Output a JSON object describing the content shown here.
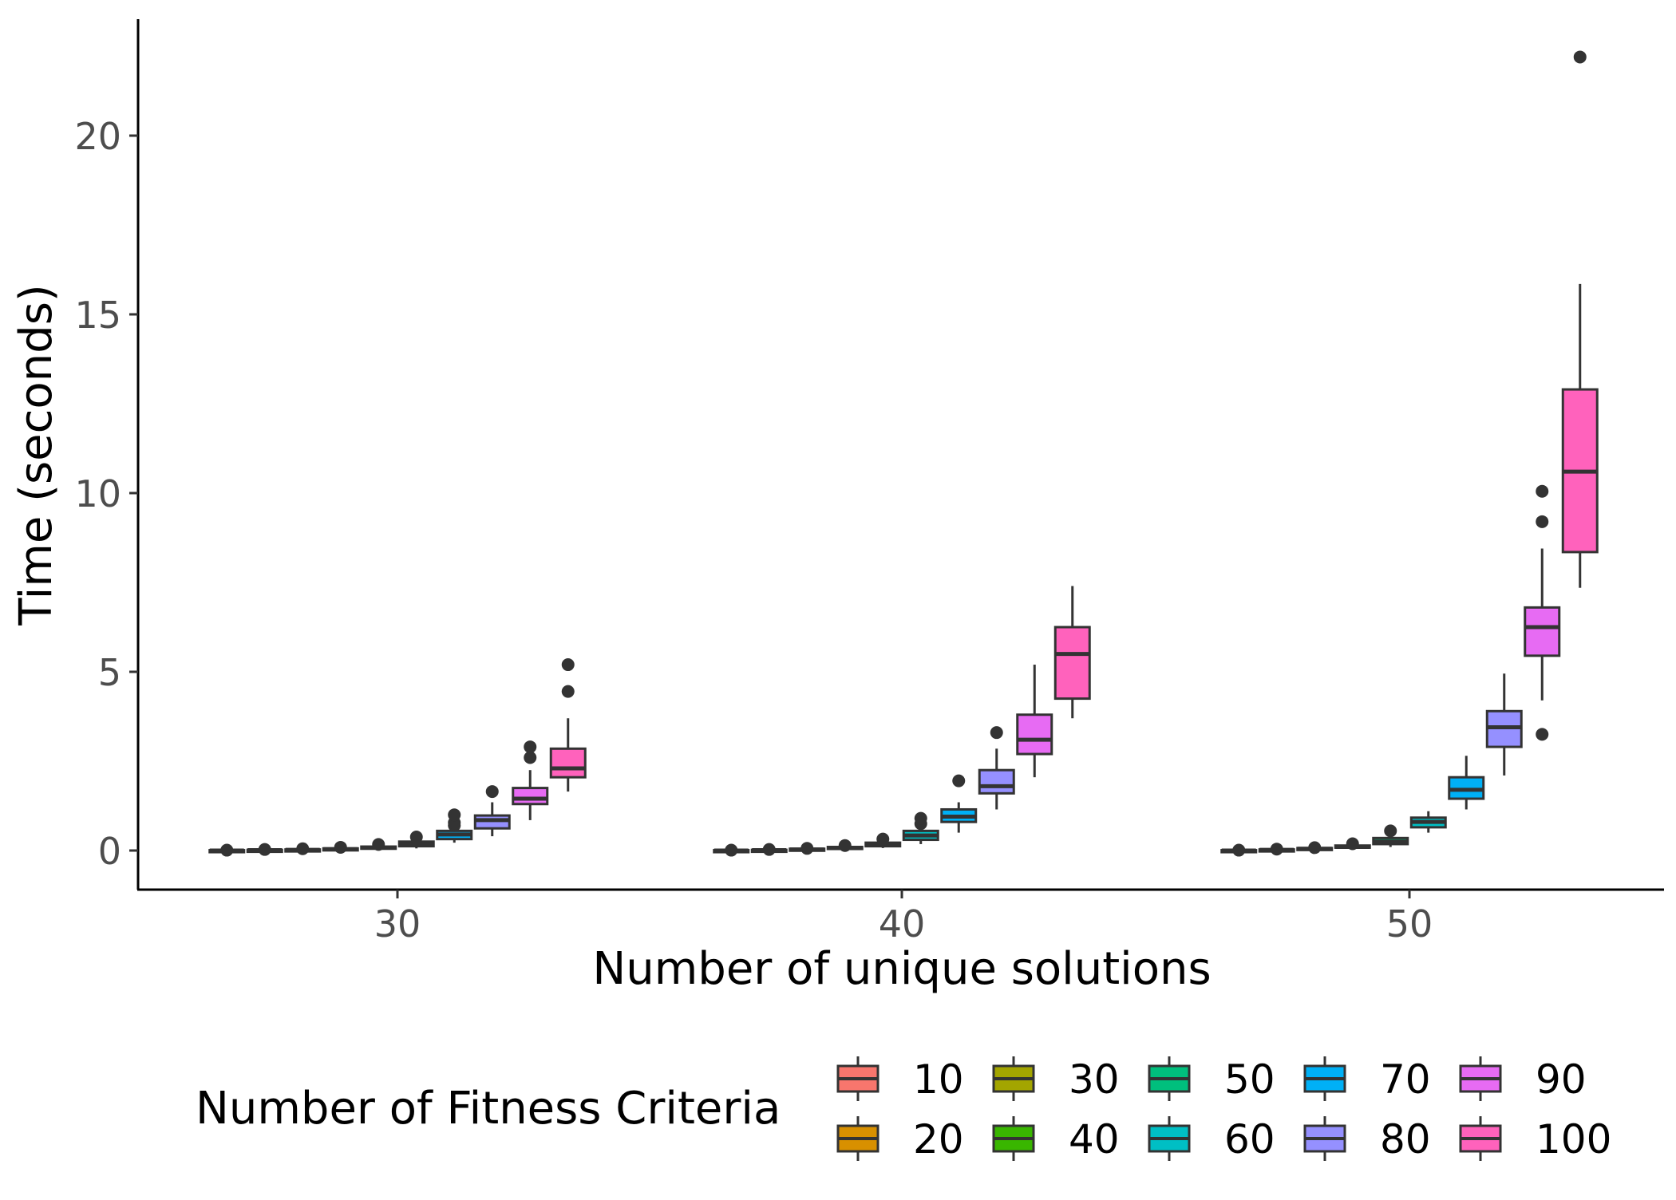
{
  "chart_data": {
    "type": "boxplot",
    "xlabel": "Number of unique solutions",
    "ylabel": "Time (seconds)",
    "ylim": [
      -1,
      23
    ],
    "y_ticks": [
      0,
      5,
      10,
      15,
      20
    ],
    "grid": false,
    "categories": [
      "30",
      "40",
      "50"
    ],
    "legend": {
      "title": "Number of Fitness Criteria",
      "placement": "bottom",
      "entries": [
        "10",
        "20",
        "30",
        "40",
        "50",
        "60",
        "70",
        "80",
        "90",
        "100"
      ]
    },
    "series": [
      {
        "name": "10",
        "color": "#F8766D",
        "boxes": [
          {
            "min": 0.0,
            "q1": 0.0,
            "median": 0.0,
            "q3": 0.01,
            "max": 0.01,
            "outliers": [
              0.01
            ]
          },
          {
            "min": 0.0,
            "q1": 0.0,
            "median": 0.0,
            "q3": 0.01,
            "max": 0.01,
            "outliers": [
              0.01
            ]
          },
          {
            "min": 0.0,
            "q1": 0.0,
            "median": 0.0,
            "q3": 0.01,
            "max": 0.01,
            "outliers": [
              0.01
            ]
          }
        ]
      },
      {
        "name": "20",
        "color": "#D89000",
        "boxes": [
          {
            "min": 0.0,
            "q1": 0.0,
            "median": 0.01,
            "q3": 0.02,
            "max": 0.03,
            "outliers": [
              0.03
            ]
          },
          {
            "min": 0.0,
            "q1": 0.01,
            "median": 0.01,
            "q3": 0.02,
            "max": 0.03,
            "outliers": [
              0.03
            ]
          },
          {
            "min": 0.0,
            "q1": 0.01,
            "median": 0.02,
            "q3": 0.03,
            "max": 0.04,
            "outliers": [
              0.04
            ]
          }
        ]
      },
      {
        "name": "30",
        "color": "#A3A500",
        "boxes": [
          {
            "min": 0.0,
            "q1": 0.01,
            "median": 0.02,
            "q3": 0.03,
            "max": 0.04,
            "outliers": [
              0.05
            ]
          },
          {
            "min": 0.01,
            "q1": 0.02,
            "median": 0.03,
            "q3": 0.05,
            "max": 0.06,
            "outliers": [
              0.06
            ]
          },
          {
            "min": 0.02,
            "q1": 0.04,
            "median": 0.05,
            "q3": 0.07,
            "max": 0.08,
            "outliers": [
              0.08
            ]
          }
        ]
      },
      {
        "name": "40",
        "color": "#39B600",
        "boxes": [
          {
            "min": 0.02,
            "q1": 0.03,
            "median": 0.04,
            "q3": 0.06,
            "max": 0.08,
            "outliers": [
              0.09
            ]
          },
          {
            "min": 0.03,
            "q1": 0.05,
            "median": 0.07,
            "q3": 0.1,
            "max": 0.12,
            "outliers": [
              0.14
            ]
          },
          {
            "min": 0.04,
            "q1": 0.08,
            "median": 0.1,
            "q3": 0.14,
            "max": 0.17,
            "outliers": [
              0.19
            ]
          }
        ]
      },
      {
        "name": "50",
        "color": "#00BF7D",
        "boxes": [
          {
            "min": 0.03,
            "q1": 0.05,
            "median": 0.08,
            "q3": 0.11,
            "max": 0.14,
            "outliers": [
              0.17
            ]
          },
          {
            "min": 0.07,
            "q1": 0.12,
            "median": 0.17,
            "q3": 0.22,
            "max": 0.27,
            "outliers": [
              0.32
            ]
          },
          {
            "min": 0.1,
            "q1": 0.18,
            "median": 0.25,
            "q3": 0.35,
            "max": 0.45,
            "outliers": [
              0.55
            ]
          }
        ]
      },
      {
        "name": "60",
        "color": "#00BFC4",
        "boxes": [
          {
            "min": 0.06,
            "q1": 0.12,
            "median": 0.18,
            "q3": 0.25,
            "max": 0.32,
            "outliers": [
              0.38
            ]
          },
          {
            "min": 0.18,
            "q1": 0.3,
            "median": 0.42,
            "q3": 0.55,
            "max": 0.68,
            "outliers": [
              0.75,
              0.9
            ]
          },
          {
            "min": 0.5,
            "q1": 0.65,
            "median": 0.8,
            "q3": 0.92,
            "max": 1.1,
            "outliers": []
          }
        ]
      },
      {
        "name": "70",
        "color": "#00B0F6",
        "boxes": [
          {
            "min": 0.22,
            "q1": 0.32,
            "median": 0.45,
            "q3": 0.55,
            "max": 0.68,
            "outliers": [
              0.7,
              0.78,
              1.0
            ]
          },
          {
            "min": 0.5,
            "q1": 0.8,
            "median": 0.95,
            "q3": 1.15,
            "max": 1.35,
            "outliers": [
              1.95
            ]
          },
          {
            "min": 1.15,
            "q1": 1.45,
            "median": 1.7,
            "q3": 2.05,
            "max": 2.65,
            "outliers": []
          }
        ]
      },
      {
        "name": "80",
        "color": "#9590FF",
        "boxes": [
          {
            "min": 0.4,
            "q1": 0.62,
            "median": 0.85,
            "q3": 0.98,
            "max": 1.35,
            "outliers": [
              1.65
            ]
          },
          {
            "min": 1.15,
            "q1": 1.6,
            "median": 1.8,
            "q3": 2.25,
            "max": 2.85,
            "outliers": [
              3.3
            ]
          },
          {
            "min": 2.1,
            "q1": 2.9,
            "median": 3.45,
            "q3": 3.9,
            "max": 4.95,
            "outliers": []
          }
        ]
      },
      {
        "name": "90",
        "color": "#E76BF3",
        "boxes": [
          {
            "min": 0.85,
            "q1": 1.3,
            "median": 1.45,
            "q3": 1.75,
            "max": 2.25,
            "outliers": [
              2.6,
              2.9
            ]
          },
          {
            "min": 2.05,
            "q1": 2.7,
            "median": 3.1,
            "q3": 3.8,
            "max": 5.2,
            "outliers": []
          },
          {
            "min": 4.2,
            "q1": 5.45,
            "median": 6.25,
            "q3": 6.8,
            "max": 8.45,
            "outliers": [
              3.25,
              9.2,
              10.05
            ]
          }
        ]
      },
      {
        "name": "100",
        "color": "#FF62BC",
        "boxes": [
          {
            "min": 1.65,
            "q1": 2.05,
            "median": 2.3,
            "q3": 2.85,
            "max": 3.7,
            "outliers": [
              4.45,
              5.2
            ]
          },
          {
            "min": 3.7,
            "q1": 4.25,
            "median": 5.5,
            "q3": 6.25,
            "max": 7.4,
            "outliers": []
          },
          {
            "min": 7.35,
            "q1": 8.35,
            "median": 10.6,
            "q3": 12.9,
            "max": 15.85,
            "outliers": [
              22.2
            ]
          }
        ]
      }
    ]
  }
}
